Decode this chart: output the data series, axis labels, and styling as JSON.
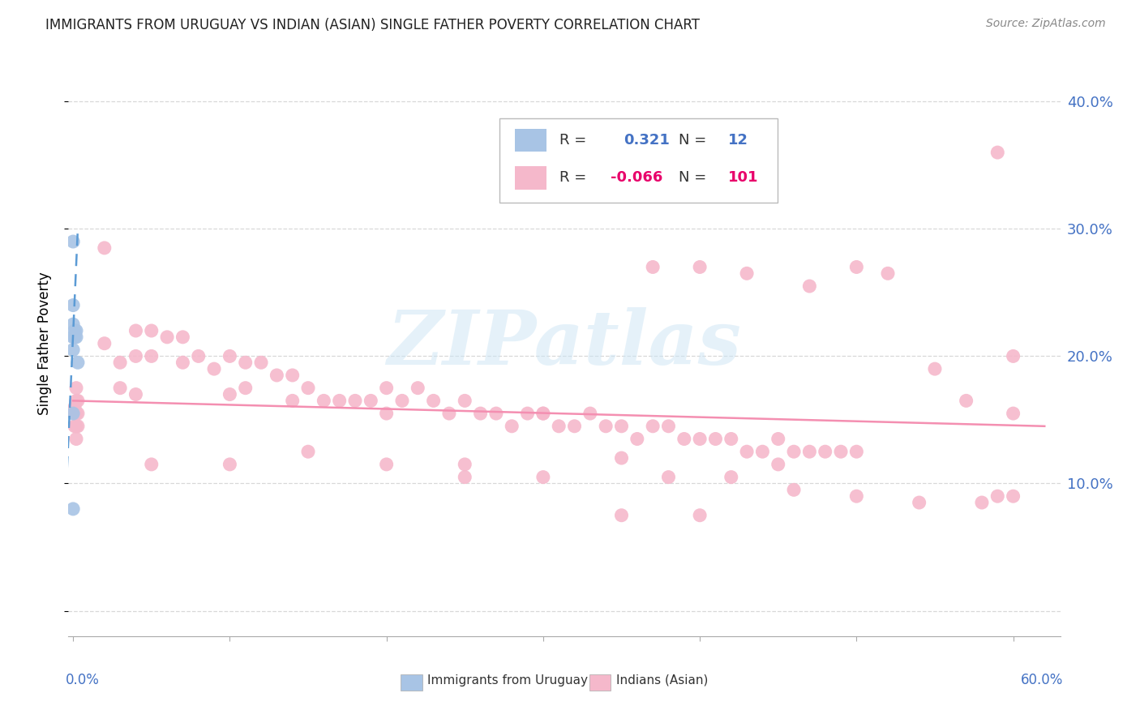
{
  "title": "IMMIGRANTS FROM URUGUAY VS INDIAN (ASIAN) SINGLE FATHER POVERTY CORRELATION CHART",
  "source": "Source: ZipAtlas.com",
  "ylabel": "Single Father Poverty",
  "uruguay_R": 0.321,
  "uruguay_N": 12,
  "indian_R": -0.066,
  "indian_N": 101,
  "uruguay_color": "#a8c4e5",
  "indian_color": "#f5b8cb",
  "uruguay_line_color": "#5b9bd5",
  "indian_line_color": "#f48fb1",
  "background_color": "#ffffff",
  "grid_color": "#d8d8d8",
  "watermark": "ZIPatlas",
  "right_tick_color": "#4472c4",
  "title_color": "#222222",
  "source_color": "#888888",
  "xlim_min": -0.003,
  "xlim_max": 0.63,
  "ylim_min": -0.02,
  "ylim_max": 0.44,
  "x_ticks": [
    0.0,
    0.1,
    0.2,
    0.3,
    0.4,
    0.5,
    0.6
  ],
  "y_ticks": [
    0.0,
    0.1,
    0.2,
    0.3,
    0.4
  ],
  "uruguay_x": [
    0.0,
    0.0,
    0.0,
    0.0,
    0.0,
    0.0,
    0.001,
    0.001,
    0.002,
    0.002,
    0.003,
    0.0
  ],
  "uruguay_y": [
    0.29,
    0.24,
    0.225,
    0.215,
    0.205,
    0.155,
    0.22,
    0.215,
    0.22,
    0.215,
    0.195,
    0.08
  ],
  "indian_x": [
    0.001,
    0.001,
    0.001,
    0.002,
    0.002,
    0.002,
    0.002,
    0.002,
    0.003,
    0.003,
    0.003,
    0.02,
    0.02,
    0.03,
    0.03,
    0.04,
    0.04,
    0.04,
    0.05,
    0.05,
    0.06,
    0.07,
    0.07,
    0.08,
    0.09,
    0.1,
    0.1,
    0.11,
    0.11,
    0.12,
    0.13,
    0.14,
    0.14,
    0.15,
    0.16,
    0.17,
    0.18,
    0.19,
    0.2,
    0.2,
    0.21,
    0.22,
    0.23,
    0.24,
    0.25,
    0.26,
    0.27,
    0.28,
    0.29,
    0.3,
    0.31,
    0.32,
    0.33,
    0.34,
    0.35,
    0.36,
    0.37,
    0.38,
    0.39,
    0.4,
    0.41,
    0.42,
    0.43,
    0.44,
    0.45,
    0.46,
    0.47,
    0.48,
    0.49,
    0.5,
    0.37,
    0.4,
    0.43,
    0.47,
    0.5,
    0.52,
    0.55,
    0.57,
    0.59,
    0.6,
    0.25,
    0.3,
    0.35,
    0.38,
    0.42,
    0.46,
    0.5,
    0.54,
    0.58,
    0.6,
    0.05,
    0.1,
    0.15,
    0.2,
    0.25,
    0.3,
    0.35,
    0.4,
    0.45,
    0.6,
    0.59
  ],
  "indian_y": [
    0.16,
    0.155,
    0.145,
    0.175,
    0.165,
    0.155,
    0.145,
    0.135,
    0.165,
    0.155,
    0.145,
    0.285,
    0.21,
    0.195,
    0.175,
    0.22,
    0.2,
    0.17,
    0.22,
    0.2,
    0.215,
    0.215,
    0.195,
    0.2,
    0.19,
    0.2,
    0.17,
    0.195,
    0.175,
    0.195,
    0.185,
    0.185,
    0.165,
    0.175,
    0.165,
    0.165,
    0.165,
    0.165,
    0.175,
    0.155,
    0.165,
    0.175,
    0.165,
    0.155,
    0.165,
    0.155,
    0.155,
    0.145,
    0.155,
    0.155,
    0.145,
    0.145,
    0.155,
    0.145,
    0.145,
    0.135,
    0.145,
    0.145,
    0.135,
    0.135,
    0.135,
    0.135,
    0.125,
    0.125,
    0.135,
    0.125,
    0.125,
    0.125,
    0.125,
    0.125,
    0.27,
    0.27,
    0.265,
    0.255,
    0.27,
    0.265,
    0.19,
    0.165,
    0.09,
    0.2,
    0.115,
    0.155,
    0.12,
    0.105,
    0.105,
    0.095,
    0.09,
    0.085,
    0.085,
    0.155,
    0.115,
    0.115,
    0.125,
    0.115,
    0.105,
    0.105,
    0.075,
    0.075,
    0.115,
    0.09,
    0.36
  ]
}
